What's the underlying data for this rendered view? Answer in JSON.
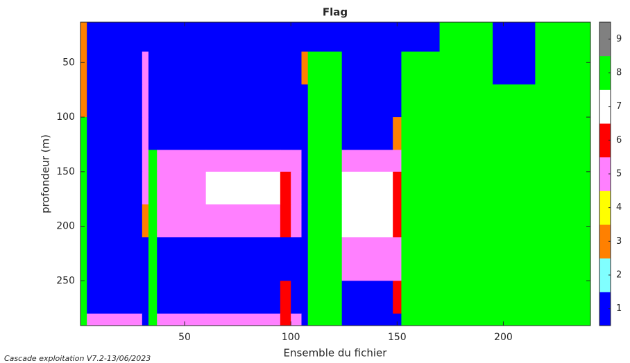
{
  "chart_data": {
    "type": "heatmap",
    "title": "Flag",
    "x_label": "Ensemble du fichier",
    "y_label": "profondeur (m)",
    "footer": "Cascade exploitation V7.2-13/06/2023",
    "x_edges": [
      1,
      4,
      30,
      33,
      37,
      60,
      95,
      100,
      105,
      108,
      124,
      148,
      152,
      170,
      195,
      215,
      241
    ],
    "y_edges": [
      13,
      40,
      70,
      100,
      130,
      150,
      180,
      210,
      250,
      280,
      291
    ],
    "z": [
      [
        3,
        1,
        1,
        1,
        1,
        1,
        1,
        1,
        1,
        1,
        1,
        1,
        1,
        8,
        1,
        8
      ],
      [
        3,
        1,
        5,
        1,
        1,
        1,
        1,
        1,
        3,
        8,
        1,
        1,
        8,
        8,
        1,
        8
      ],
      [
        3,
        1,
        5,
        1,
        1,
        1,
        1,
        1,
        1,
        8,
        1,
        1,
        8,
        8,
        8,
        8
      ],
      [
        8,
        1,
        5,
        1,
        1,
        1,
        1,
        1,
        1,
        8,
        1,
        3,
        8,
        8,
        8,
        8
      ],
      [
        8,
        1,
        5,
        8,
        5,
        5,
        5,
        5,
        1,
        8,
        5,
        5,
        8,
        8,
        8,
        8
      ],
      [
        8,
        1,
        5,
        8,
        5,
        7,
        6,
        5,
        1,
        8,
        7,
        6,
        8,
        8,
        8,
        8
      ],
      [
        8,
        1,
        3,
        8,
        5,
        5,
        6,
        5,
        1,
        8,
        7,
        6,
        8,
        8,
        8,
        8
      ],
      [
        8,
        1,
        1,
        8,
        1,
        1,
        1,
        1,
        1,
        8,
        5,
        5,
        8,
        8,
        8,
        8
      ],
      [
        8,
        1,
        1,
        8,
        1,
        1,
        6,
        1,
        1,
        8,
        1,
        6,
        8,
        8,
        8,
        8
      ],
      [
        8,
        5,
        1,
        8,
        5,
        5,
        6,
        5,
        1,
        8,
        1,
        1,
        8,
        8,
        8,
        8
      ]
    ],
    "xlim": [
      1,
      241
    ],
    "ylim": [
      13,
      291
    ],
    "y_reversed": true,
    "xticks": [
      50,
      100,
      150,
      200
    ],
    "yticks": [
      50,
      100,
      150,
      200,
      250
    ],
    "colorbar": {
      "levels": [
        1,
        2,
        3,
        4,
        5,
        6,
        7,
        8,
        9
      ],
      "colors": [
        "#0000ff",
        "#80ffff",
        "#ff8000",
        "#ffff00",
        "#ff80ff",
        "#ff0000",
        "#ffffff",
        "#00ff00",
        "#808080"
      ]
    }
  }
}
